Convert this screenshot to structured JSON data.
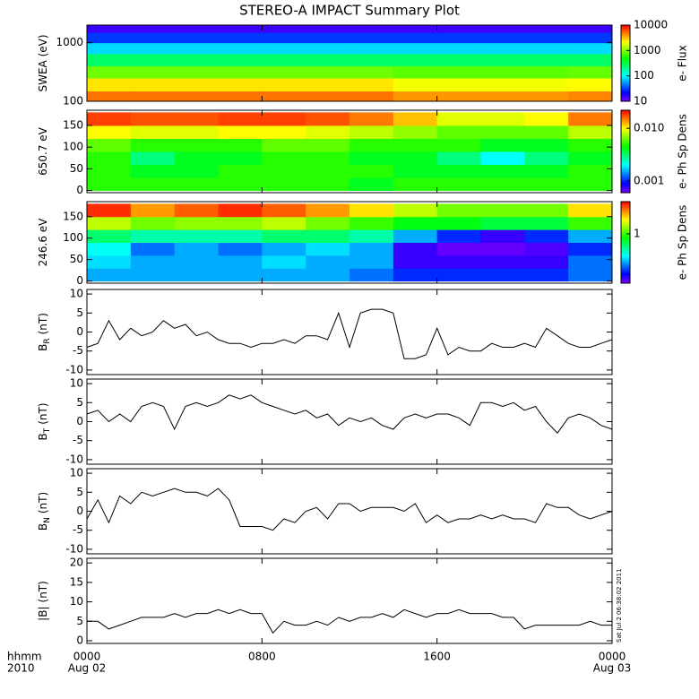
{
  "figure": {
    "title": "STEREO-A IMPACT Summary Plot",
    "timestamp": "Sat Jul  2 06:38:02 2011",
    "x_caption": [
      "hhmm",
      "2010"
    ],
    "xlim": [
      0,
      24
    ],
    "xticks": [
      {
        "value": 0,
        "label": "0000"
      },
      {
        "value": 8,
        "label": "0800"
      },
      {
        "value": 16,
        "label": "1600"
      },
      {
        "value": 24,
        "label": "0000"
      }
    ],
    "x_dates": [
      {
        "value": 0,
        "label": "Aug 02"
      },
      {
        "value": 24,
        "label": "Aug 03"
      }
    ]
  },
  "chart_data": [
    {
      "type": "heatmap",
      "ylabel": "SWEA (eV)",
      "ylog": true,
      "ylim": [
        100,
        2000
      ],
      "yticks": [
        100,
        1000
      ],
      "x_bins": [
        0,
        2,
        4,
        6,
        8,
        10,
        12,
        14,
        16,
        18,
        20,
        22,
        24
      ],
      "y_bins": [
        100,
        150,
        250,
        400,
        650,
        1000,
        1500,
        2000
      ],
      "values": [
        [
          5000,
          5000,
          5000,
          5000,
          5000,
          5000,
          5000,
          4000,
          4000,
          4000,
          4000,
          4500
        ],
        [
          2500,
          2500,
          2500,
          2500,
          2500,
          2500,
          2500,
          2000,
          2000,
          2000,
          2000,
          2200
        ],
        [
          900,
          900,
          900,
          900,
          900,
          900,
          900,
          800,
          800,
          800,
          800,
          850
        ],
        [
          250,
          250,
          250,
          250,
          250,
          250,
          250,
          250,
          250,
          250,
          250,
          250
        ],
        [
          80,
          80,
          80,
          80,
          80,
          80,
          80,
          80,
          80,
          80,
          80,
          80
        ],
        [
          30,
          30,
          30,
          30,
          30,
          30,
          30,
          30,
          30,
          30,
          30,
          30
        ],
        [
          15,
          15,
          15,
          15,
          15,
          15,
          15,
          15,
          15,
          15,
          15,
          15
        ]
      ],
      "colorbar": {
        "label": "e- Flux",
        "log": true,
        "lim": [
          10,
          10000
        ],
        "ticks": [
          10,
          100,
          1000,
          10000
        ]
      }
    },
    {
      "type": "heatmap",
      "ylabel": "650.7 eV",
      "ylog": false,
      "ylim": [
        -5,
        185
      ],
      "yticks": [
        0,
        50,
        100,
        150
      ],
      "x_bins": [
        0,
        2,
        4,
        6,
        8,
        10,
        12,
        14,
        16,
        18,
        20,
        22,
        24
      ],
      "y_bins": [
        0,
        30,
        60,
        90,
        120,
        150,
        180
      ],
      "values": [
        [
          0.005,
          0.005,
          0.005,
          0.005,
          0.005,
          0.005,
          0.004,
          0.005,
          0.005,
          0.005,
          0.005,
          0.005
        ],
        [
          0.005,
          0.004,
          0.004,
          0.005,
          0.005,
          0.005,
          0.005,
          0.004,
          0.004,
          0.004,
          0.004,
          0.005
        ],
        [
          0.005,
          0.003,
          0.004,
          0.004,
          0.005,
          0.005,
          0.004,
          0.004,
          0.003,
          0.002,
          0.003,
          0.004
        ],
        [
          0.006,
          0.005,
          0.005,
          0.005,
          0.006,
          0.006,
          0.005,
          0.005,
          0.005,
          0.004,
          0.004,
          0.005
        ],
        [
          0.01,
          0.009,
          0.009,
          0.01,
          0.01,
          0.009,
          0.008,
          0.007,
          0.006,
          0.006,
          0.006,
          0.008
        ],
        [
          0.018,
          0.017,
          0.017,
          0.018,
          0.018,
          0.017,
          0.015,
          0.012,
          0.009,
          0.009,
          0.01,
          0.015
        ]
      ],
      "colorbar": {
        "label": "e- Ph Sp Dens",
        "log": true,
        "lim": [
          0.0006,
          0.022
        ],
        "ticks": [
          0.001,
          {
            "value": 0.01,
            "label": "0.010"
          }
        ]
      }
    },
    {
      "type": "heatmap",
      "ylabel": "246.6 eV",
      "ylog": false,
      "ylim": [
        -5,
        185
      ],
      "yticks": [
        0,
        50,
        100,
        150
      ],
      "x_bins": [
        0,
        2,
        4,
        6,
        8,
        10,
        12,
        14,
        16,
        18,
        20,
        22,
        24
      ],
      "y_bins": [
        0,
        30,
        60,
        90,
        120,
        150,
        180
      ],
      "values": [
        [
          0.3,
          0.3,
          0.3,
          0.3,
          0.3,
          0.3,
          0.25,
          0.2,
          0.2,
          0.2,
          0.2,
          0.25
        ],
        [
          0.35,
          0.3,
          0.3,
          0.3,
          0.35,
          0.3,
          0.3,
          0.15,
          0.15,
          0.15,
          0.15,
          0.25
        ],
        [
          0.4,
          0.25,
          0.3,
          0.25,
          0.3,
          0.35,
          0.3,
          0.15,
          0.13,
          0.13,
          0.14,
          0.2
        ],
        [
          0.6,
          0.5,
          0.5,
          0.5,
          0.6,
          0.6,
          0.5,
          0.3,
          0.2,
          0.15,
          0.2,
          0.3
        ],
        [
          1.5,
          1.2,
          1.3,
          1.3,
          1.5,
          1.2,
          1,
          0.8,
          0.8,
          0.7,
          0.7,
          1
        ],
        [
          3.5,
          2.5,
          3,
          3.5,
          3,
          2.5,
          2,
          1.5,
          1.2,
          1.2,
          1.2,
          2
        ]
      ],
      "colorbar": {
        "label": "e- Ph Sp Dens",
        "log": true,
        "lim": [
          0.12,
          4
        ],
        "ticks": [
          1
        ]
      }
    },
    {
      "type": "line",
      "ylabel": "B",
      "ylabel_sub": "R",
      "ylabel_unit": "(nT)",
      "ylim": [
        -11.2,
        11.2
      ],
      "yticks": [
        -10,
        -5,
        0,
        5,
        10
      ],
      "color": "#000000",
      "x": [
        0,
        0.5,
        1,
        1.5,
        2,
        2.5,
        3,
        3.5,
        4,
        4.5,
        5,
        5.5,
        6,
        6.5,
        7,
        7.5,
        8,
        8.5,
        9,
        9.5,
        10,
        10.5,
        11,
        11.5,
        12,
        12.5,
        13,
        13.5,
        14,
        14.5,
        15,
        15.5,
        16,
        16.5,
        17,
        17.5,
        18,
        18.5,
        19,
        19.5,
        20,
        20.5,
        21,
        21.5,
        22,
        22.5,
        23,
        23.5,
        24
      ],
      "values": [
        -4,
        -3,
        3,
        -2,
        1,
        -1,
        0,
        3,
        1,
        2,
        -1,
        0,
        -2,
        -3,
        -3,
        -4,
        -3,
        -3,
        -2,
        -3,
        -1,
        -1,
        -2,
        5,
        -4,
        5,
        6,
        6,
        5,
        -7,
        -7,
        -6,
        1,
        -6,
        -4,
        -5,
        -5,
        -3,
        -4,
        -4,
        -3,
        -4,
        1,
        -1,
        -3,
        -4,
        -4,
        -3,
        -2
      ]
    },
    {
      "type": "line",
      "ylabel": "B",
      "ylabel_sub": "T",
      "ylabel_unit": "(nT)",
      "ylim": [
        -11.2,
        11.2
      ],
      "yticks": [
        -10,
        -5,
        0,
        5,
        10
      ],
      "color": "#000000",
      "x": [
        0,
        0.5,
        1,
        1.5,
        2,
        2.5,
        3,
        3.5,
        4,
        4.5,
        5,
        5.5,
        6,
        6.5,
        7,
        7.5,
        8,
        8.5,
        9,
        9.5,
        10,
        10.5,
        11,
        11.5,
        12,
        12.5,
        13,
        13.5,
        14,
        14.5,
        15,
        15.5,
        16,
        16.5,
        17,
        17.5,
        18,
        18.5,
        19,
        19.5,
        20,
        20.5,
        21,
        21.5,
        22,
        22.5,
        23,
        23.5,
        24
      ],
      "values": [
        2,
        3,
        0,
        2,
        0,
        4,
        5,
        4,
        -2,
        4,
        5,
        4,
        5,
        7,
        6,
        7,
        5,
        4,
        3,
        2,
        3,
        1,
        2,
        -1,
        1,
        0,
        1,
        -1,
        -2,
        1,
        2,
        1,
        2,
        2,
        1,
        -1,
        5,
        5,
        4,
        5,
        3,
        4,
        0,
        -3,
        1,
        2,
        1,
        -1,
        -2
      ]
    },
    {
      "type": "line",
      "ylabel": "B",
      "ylabel_sub": "N",
      "ylabel_unit": "(nT)",
      "ylim": [
        -11.2,
        11.2
      ],
      "yticks": [
        -10,
        -5,
        0,
        5,
        10
      ],
      "color": "#000000",
      "x": [
        0,
        0.5,
        1,
        1.5,
        2,
        2.5,
        3,
        3.5,
        4,
        4.5,
        5,
        5.5,
        6,
        6.5,
        7,
        7.5,
        8,
        8.5,
        9,
        9.5,
        10,
        10.5,
        11,
        11.5,
        12,
        12.5,
        13,
        13.5,
        14,
        14.5,
        15,
        15.5,
        16,
        16.5,
        17,
        17.5,
        18,
        18.5,
        19,
        19.5,
        20,
        20.5,
        21,
        21.5,
        22,
        22.5,
        23,
        23.5,
        24
      ],
      "values": [
        -2,
        3,
        -3,
        4,
        2,
        5,
        4,
        5,
        6,
        5,
        5,
        4,
        6,
        3,
        -4,
        -4,
        -4,
        -5,
        -2,
        -3,
        0,
        1,
        -2,
        2,
        2,
        0,
        1,
        1,
        1,
        0,
        2,
        -3,
        -1,
        -3,
        -2,
        -2,
        -1,
        -2,
        -1,
        -2,
        -2,
        -3,
        2,
        1,
        1,
        -1,
        -2,
        -1,
        0
      ]
    },
    {
      "type": "line",
      "ylabel": "|B|",
      "ylabel_unit": "(nT)",
      "ylim": [
        -0.7,
        21.2
      ],
      "yticks": [
        0,
        5,
        10,
        15,
        20
      ],
      "color": "#000000",
      "x": [
        0,
        0.5,
        1,
        1.5,
        2,
        2.5,
        3,
        3.5,
        4,
        4.5,
        5,
        5.5,
        6,
        6.5,
        7,
        7.5,
        8,
        8.5,
        9,
        9.5,
        10,
        10.5,
        11,
        11.5,
        12,
        12.5,
        13,
        13.5,
        14,
        14.5,
        15,
        15.5,
        16,
        16.5,
        17,
        17.5,
        18,
        18.5,
        19,
        19.5,
        20,
        20.5,
        21,
        21.5,
        22,
        22.5,
        23,
        23.5,
        24
      ],
      "values": [
        5,
        5,
        3,
        4,
        5,
        6,
        6,
        6,
        7,
        6,
        7,
        7,
        8,
        7,
        8,
        7,
        7,
        2,
        5,
        4,
        4,
        5,
        4,
        6,
        5,
        6,
        6,
        7,
        6,
        8,
        7,
        6,
        7,
        7,
        8,
        7,
        7,
        7,
        6,
        6,
        3,
        4,
        4,
        4,
        4,
        4,
        5,
        4,
        4
      ]
    }
  ]
}
